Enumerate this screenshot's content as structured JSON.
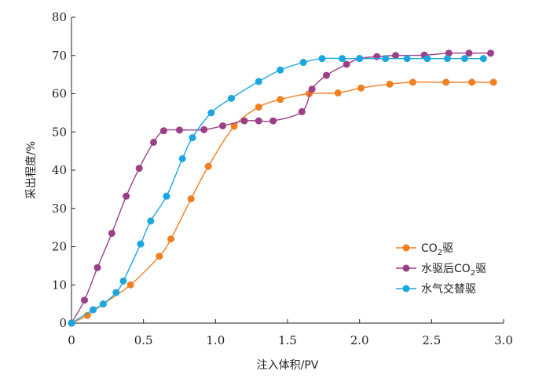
{
  "chart_data": {
    "type": "line",
    "xlabel": "注入体积/PV",
    "ylabel": "采出程度/%",
    "xlim": [
      0,
      3.0
    ],
    "ylim": [
      0,
      80
    ],
    "xticks": [
      "0",
      "0.5",
      "1.0",
      "1.5",
      "2.0",
      "2.5",
      "3.0"
    ],
    "yticks": [
      "0",
      "10",
      "20",
      "30",
      "40",
      "50",
      "60",
      "70",
      "80"
    ],
    "grid": false,
    "legend_position": "bottom-right",
    "series": [
      {
        "name": "CO2驱",
        "color": "#f07f22",
        "x": [
          0,
          0.11,
          0.22,
          0.41,
          0.61,
          0.69,
          0.83,
          0.95,
          1.13,
          1.3,
          1.45,
          1.65,
          1.85,
          2.01,
          2.21,
          2.37,
          2.6,
          2.78,
          2.93
        ],
        "y": [
          0,
          2,
          5,
          10,
          17.5,
          22,
          32.5,
          41,
          51.5,
          56.5,
          58.5,
          60,
          60.2,
          61.5,
          62.5,
          63,
          63,
          63,
          63
        ]
      },
      {
        "name": "水驱后CO2驱",
        "color": "#9b3f87",
        "x": [
          0,
          0.09,
          0.18,
          0.28,
          0.38,
          0.47,
          0.57,
          0.64,
          0.75,
          0.92,
          1.05,
          1.2,
          1.3,
          1.4,
          1.6,
          1.67,
          1.77,
          1.91,
          2.0,
          2.12,
          2.25,
          2.45,
          2.62,
          2.76,
          2.91
        ],
        "y": [
          0,
          6,
          14.5,
          23.5,
          33.2,
          40.5,
          47.3,
          50.3,
          50.5,
          50.6,
          51.6,
          52.9,
          52.9,
          52.9,
          55.3,
          61.2,
          64.8,
          67.7,
          69.2,
          69.7,
          70,
          70.1,
          70.6,
          70.6,
          70.6
        ]
      },
      {
        "name": "水气交替驱",
        "color": "#1aa7e0",
        "x": [
          0,
          0.15,
          0.22,
          0.31,
          0.36,
          0.48,
          0.55,
          0.66,
          0.77,
          0.84,
          0.97,
          1.11,
          1.3,
          1.45,
          1.61,
          1.74,
          1.88,
          2.0,
          2.18,
          2.33,
          2.47,
          2.61,
          2.73,
          2.86
        ],
        "y": [
          0,
          3.5,
          5,
          8,
          11,
          20.7,
          26.7,
          33.2,
          43,
          48.5,
          55,
          58.8,
          63.2,
          66.2,
          68.2,
          69.2,
          69.2,
          69.2,
          69.2,
          69.2,
          69.2,
          69.2,
          69.2,
          69.2
        ]
      }
    ]
  },
  "legend": {
    "items": [
      {
        "prefix": "CO",
        "sub": "2",
        "suffix": "驱"
      },
      {
        "prefix": "水驱后CO",
        "sub": "2",
        "suffix": "驱"
      },
      {
        "prefix": "水气交替驱",
        "sub": "",
        "suffix": ""
      }
    ]
  }
}
